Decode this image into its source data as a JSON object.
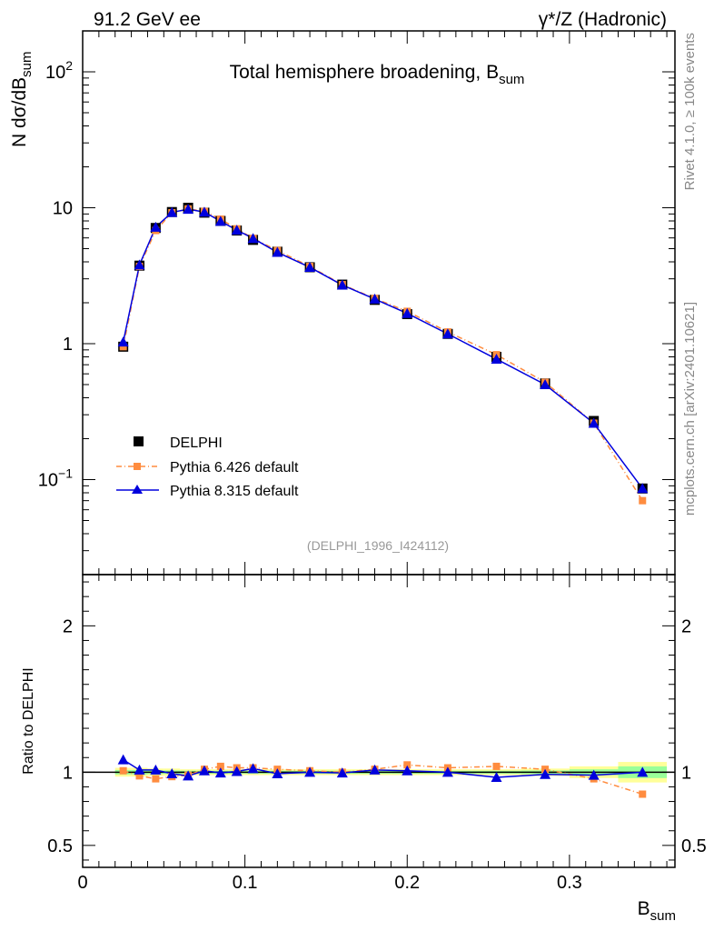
{
  "header": {
    "left": "91.2 GeV ee",
    "right": "γ*/Z (Hadronic)"
  },
  "side_text": {
    "rivet": "Rivet 4.1.0, ≥ 100k events",
    "mcplots": "mcplots.cern.ch [arXiv:2401.10621]"
  },
  "colors": {
    "data": "#000000",
    "pythia6": "#ff8c3f",
    "pythia8": "#0000dd",
    "band_yellow": "#ffff99",
    "band_green": "#99ff99",
    "ref_line": "#007700"
  },
  "chart_data": [
    {
      "type": "scatter",
      "scale": "log",
      "title": "Total hemisphere broadening, B",
      "title_sub": "sum",
      "ylabel_main": "N  dσ/dB",
      "ylabel_sub": "sum",
      "analysis_id": "(DELPHI_1996_I424112)",
      "xlim": [
        0,
        0.365
      ],
      "ylim": [
        0.02,
        200
      ],
      "y_ticks": [
        {
          "value": 100,
          "base": "10",
          "exp": "2"
        },
        {
          "value": 10,
          "base": "10",
          "exp": ""
        },
        {
          "value": 1,
          "base": "1",
          "exp": ""
        },
        {
          "value": 0.1,
          "base": "10",
          "exp": "−1"
        }
      ],
      "legend": [
        "DELPHI",
        "Pythia 6.426 default",
        "Pythia 8.315 default"
      ],
      "x": [
        0.025,
        0.035,
        0.045,
        0.055,
        0.065,
        0.075,
        0.085,
        0.095,
        0.105,
        0.12,
        0.14,
        0.16,
        0.18,
        0.2,
        0.225,
        0.255,
        0.285,
        0.315,
        0.345
      ],
      "series": [
        {
          "name": "DELPHI",
          "values": [
            0.95,
            3.75,
            7.1,
            9.3,
            10.0,
            9.2,
            8.0,
            6.8,
            5.8,
            4.75,
            3.65,
            2.72,
            2.1,
            1.65,
            1.18,
            0.8,
            0.51,
            0.27,
            0.086
          ]
        },
        {
          "name": "Pythia 6.426 default",
          "values": [
            0.95,
            3.7,
            6.8,
            9.2,
            9.8,
            9.4,
            8.25,
            7.0,
            5.95,
            4.85,
            3.7,
            2.72,
            2.15,
            1.73,
            1.22,
            0.83,
            0.52,
            0.26,
            0.07
          ]
        },
        {
          "name": "Pythia 8.315 default",
          "values": [
            1.03,
            3.8,
            7.2,
            9.25,
            9.75,
            9.3,
            7.95,
            6.85,
            5.95,
            4.7,
            3.65,
            2.7,
            2.13,
            1.67,
            1.18,
            0.77,
            0.5,
            0.26,
            0.086
          ]
        }
      ]
    },
    {
      "type": "scatter",
      "scale": "linear",
      "ylabel": "Ratio to DELPHI",
      "xlabel": "B",
      "xlabel_sub": "sum",
      "xlim": [
        0,
        0.365
      ],
      "ylim": [
        0.35,
        2.35
      ],
      "y_ticks": [
        0.5,
        1,
        2
      ],
      "y_tick_labels": [
        "0.5",
        "1",
        "2"
      ],
      "x_ticks": [
        0,
        0.1,
        0.2,
        0.3
      ],
      "x_tick_labels": [
        "0",
        "0.1",
        "0.2",
        "0.3"
      ],
      "x": [
        0.025,
        0.035,
        0.045,
        0.055,
        0.065,
        0.075,
        0.085,
        0.095,
        0.105,
        0.12,
        0.14,
        0.16,
        0.18,
        0.2,
        0.225,
        0.255,
        0.285,
        0.315,
        0.345
      ],
      "band_edges": [
        0.02,
        0.03,
        0.04,
        0.05,
        0.06,
        0.07,
        0.08,
        0.09,
        0.1,
        0.11,
        0.13,
        0.15,
        0.17,
        0.19,
        0.21,
        0.24,
        0.27,
        0.3,
        0.33,
        0.36
      ],
      "band_yellow_halfwidth": [
        0.03,
        0.03,
        0.025,
        0.025,
        0.02,
        0.02,
        0.02,
        0.02,
        0.02,
        0.02,
        0.02,
        0.02,
        0.02,
        0.02,
        0.02,
        0.02,
        0.025,
        0.04,
        0.07
      ],
      "band_green_halfwidth": [
        0.015,
        0.015,
        0.012,
        0.012,
        0.01,
        0.01,
        0.01,
        0.01,
        0.01,
        0.01,
        0.01,
        0.01,
        0.01,
        0.01,
        0.01,
        0.01,
        0.012,
        0.02,
        0.04
      ],
      "series": [
        {
          "name": "Pythia 6.426 default",
          "values": [
            1.01,
            0.975,
            0.955,
            0.97,
            0.98,
            1.02,
            1.04,
            1.03,
            1.03,
            1.02,
            1.01,
            1.0,
            1.02,
            1.05,
            1.03,
            1.04,
            1.02,
            0.955,
            0.85
          ]
        },
        {
          "name": "Pythia 8.315 default",
          "values": [
            1.085,
            1.015,
            1.015,
            0.99,
            0.975,
            1.01,
            0.995,
            1.005,
            1.025,
            0.99,
            1.0,
            0.995,
            1.015,
            1.01,
            1.0,
            0.965,
            0.985,
            0.98,
            1.0
          ]
        }
      ]
    }
  ]
}
